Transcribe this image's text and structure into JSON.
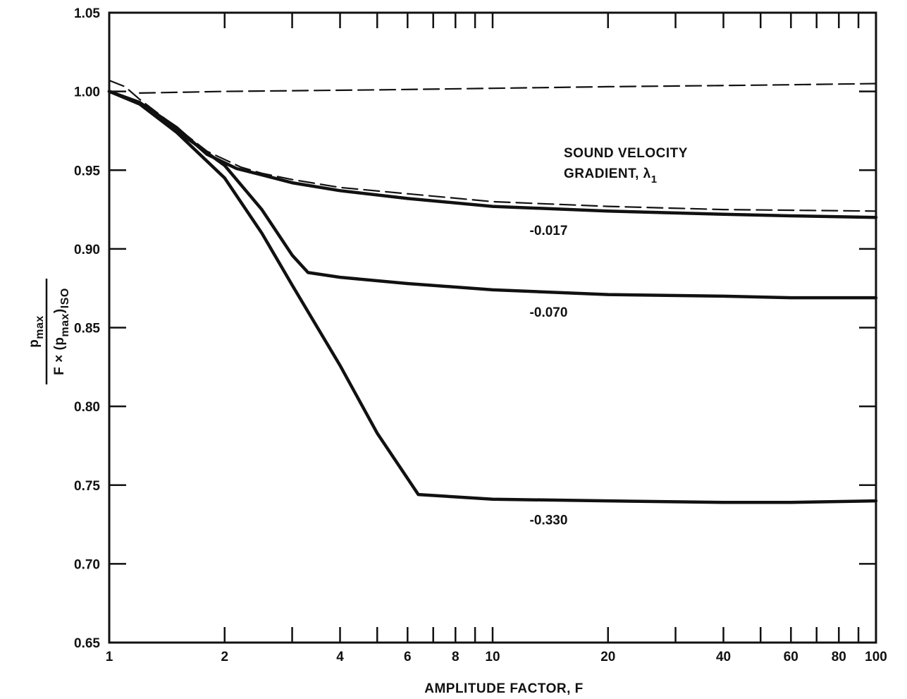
{
  "chart_data": {
    "type": "line",
    "xscale": "log",
    "xlim": [
      1,
      100
    ],
    "ylim": [
      0.65,
      1.05
    ],
    "xlabel": "AMPLITUDE FACTOR, F",
    "ylabel": {
      "numerator": "p",
      "numerator_sub": "max",
      "denominator_prefix": "F × (p",
      "denominator_sub1": "max",
      "denominator_mid": ")",
      "denominator_sub2": "ISO"
    },
    "x_ticks": [
      1,
      2,
      4,
      6,
      8,
      10,
      20,
      40,
      60,
      80,
      100
    ],
    "x_tick_labels": [
      "1",
      "2",
      "4",
      "6",
      "8",
      "10",
      "20",
      "40",
      "60",
      "80",
      "100"
    ],
    "y_ticks": [
      0.65,
      0.7,
      0.75,
      0.8,
      0.85,
      0.9,
      0.95,
      1.0,
      1.05
    ],
    "y_tick_labels": [
      "0.65",
      "0.70",
      "0.75",
      "0.80",
      "0.85",
      "0.90",
      "0.95",
      "1.00",
      "1.05"
    ],
    "legend_title_line1": "SOUND VELOCITY",
    "legend_title_line2": "GRADIENT, λ",
    "legend_title_sub": "1",
    "series": [
      {
        "name": "-0.017",
        "style": "solid",
        "points": [
          [
            1,
            1.0
          ],
          [
            1.2,
            0.993
          ],
          [
            1.5,
            0.977
          ],
          [
            1.8,
            0.96
          ],
          [
            2.15,
            0.951
          ],
          [
            2.5,
            0.947
          ],
          [
            3,
            0.942
          ],
          [
            4,
            0.937
          ],
          [
            6,
            0.932
          ],
          [
            10,
            0.927
          ],
          [
            20,
            0.924
          ],
          [
            40,
            0.922
          ],
          [
            60,
            0.921
          ],
          [
            100,
            0.92
          ]
        ]
      },
      {
        "name": "-0.070",
        "style": "solid",
        "points": [
          [
            1,
            1.0
          ],
          [
            1.2,
            0.993
          ],
          [
            1.5,
            0.975
          ],
          [
            2,
            0.953
          ],
          [
            2.5,
            0.925
          ],
          [
            3.0,
            0.896
          ],
          [
            3.3,
            0.885
          ],
          [
            4,
            0.882
          ],
          [
            6,
            0.878
          ],
          [
            10,
            0.874
          ],
          [
            20,
            0.871
          ],
          [
            40,
            0.87
          ],
          [
            60,
            0.869
          ],
          [
            100,
            0.869
          ]
        ]
      },
      {
        "name": "-0.330",
        "style": "solid",
        "points": [
          [
            1,
            1.0
          ],
          [
            1.2,
            0.992
          ],
          [
            1.5,
            0.974
          ],
          [
            2,
            0.945
          ],
          [
            2.5,
            0.91
          ],
          [
            3,
            0.877
          ],
          [
            4,
            0.826
          ],
          [
            5,
            0.783
          ],
          [
            6.4,
            0.744
          ],
          [
            10,
            0.741
          ],
          [
            20,
            0.74
          ],
          [
            40,
            0.739
          ],
          [
            60,
            0.739
          ],
          [
            100,
            0.74
          ]
        ]
      },
      {
        "name": "",
        "style": "dashed",
        "points": [
          [
            1,
            1.007
          ],
          [
            1.1,
            1.003
          ],
          [
            1.2,
            0.995
          ],
          [
            1.5,
            0.977
          ],
          [
            1.8,
            0.962
          ],
          [
            2.2,
            0.952
          ],
          [
            2.5,
            0.948
          ],
          [
            3,
            0.944
          ],
          [
            4,
            0.939
          ],
          [
            6,
            0.935
          ],
          [
            10,
            0.93
          ],
          [
            20,
            0.927
          ],
          [
            40,
            0.925
          ],
          [
            100,
            0.924
          ]
        ]
      },
      {
        "name": "",
        "style": "dashed",
        "points": [
          [
            1.2,
            0.999
          ],
          [
            2,
            1.0
          ],
          [
            5,
            1.001
          ],
          [
            10,
            1.002
          ],
          [
            20,
            1.003
          ],
          [
            50,
            1.004
          ],
          [
            100,
            1.005
          ]
        ]
      }
    ],
    "series_labels": [
      {
        "text": "-0.017",
        "x": 14,
        "y": 0.909
      },
      {
        "text": "-0.070",
        "x": 14,
        "y": 0.857
      },
      {
        "text": "-0.330",
        "x": 14,
        "y": 0.725
      }
    ]
  }
}
